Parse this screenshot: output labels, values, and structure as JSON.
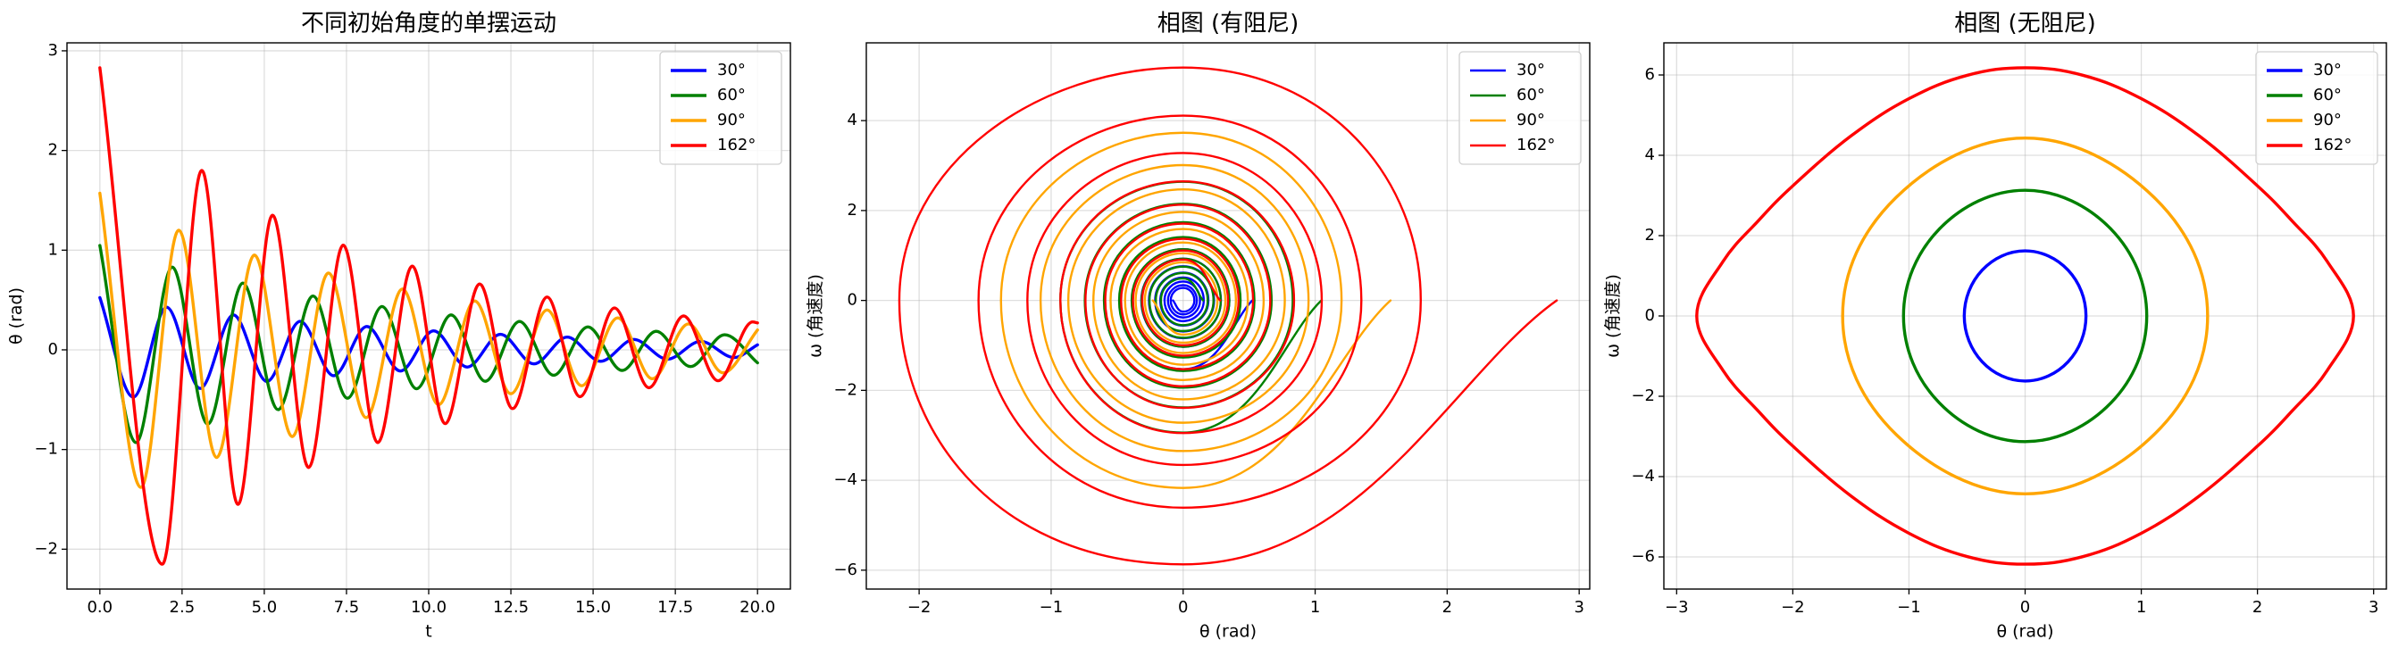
{
  "chart_data": [
    {
      "type": "line",
      "title": "不同初始角度的单摆运动",
      "xlabel": "t",
      "ylabel": "θ (rad)",
      "xlim": [
        -1,
        21
      ],
      "ylim": [
        -2.4,
        3.08
      ],
      "xticks": [
        {
          "value": 0,
          "label": "0.0"
        },
        2.5,
        {
          "value": 5,
          "label": "5.0"
        },
        7.5,
        {
          "value": 10,
          "label": "10.0"
        },
        12.5,
        {
          "value": 15,
          "label": "15.0"
        },
        17.5,
        {
          "value": 20,
          "label": "20.0"
        }
      ],
      "yticks": [
        {
          "value": -2,
          "label": "−2"
        },
        {
          "value": -1,
          "label": "−1"
        },
        0,
        1,
        2,
        3
      ],
      "grid": true,
      "legend": "upper right",
      "series": [
        {
          "name": "30°",
          "color": "#0000ff",
          "x": [
            0,
            1.02,
            2.03,
            3.05,
            4.06,
            5.08,
            6.09,
            7.11,
            8.12,
            9.14,
            10.15,
            11.17,
            12.18,
            13.2,
            14.21,
            15.23,
            16.24,
            17.26,
            18.27,
            19.29,
            20
          ],
          "values": [
            0.524,
            -0.474,
            0.428,
            -0.387,
            0.35,
            -0.317,
            0.286,
            -0.259,
            0.234,
            -0.212,
            0.191,
            -0.173,
            0.156,
            -0.141,
            0.128,
            -0.115,
            0.104,
            -0.094,
            0.085,
            -0.077,
            0.05
          ]
        },
        {
          "name": "60°",
          "color": "#008000",
          "x": [
            0,
            1.1,
            2.2,
            3.28,
            4.35,
            5.42,
            6.48,
            7.53,
            8.58,
            9.63,
            10.68,
            11.72,
            12.76,
            13.8,
            14.84,
            15.88,
            16.92,
            17.96,
            19.0,
            20
          ],
          "values": [
            1.047,
            -0.93,
            0.83,
            -0.745,
            0.67,
            -0.6,
            0.54,
            -0.485,
            0.435,
            -0.39,
            0.35,
            -0.315,
            0.285,
            -0.255,
            0.23,
            -0.207,
            0.186,
            -0.168,
            0.151,
            -0.13
          ]
        },
        {
          "name": "90°",
          "color": "#ffa500",
          "x": [
            0,
            1.25,
            2.4,
            3.55,
            4.7,
            5.85,
            6.95,
            8.1,
            9.2,
            10.3,
            11.4,
            12.5,
            13.6,
            14.65,
            15.75,
            16.8,
            17.9,
            18.95,
            20
          ],
          "values": [
            1.571,
            -1.38,
            1.2,
            -1.08,
            0.95,
            -0.87,
            0.77,
            -0.68,
            0.61,
            -0.55,
            0.49,
            -0.44,
            0.4,
            -0.36,
            0.32,
            -0.29,
            0.26,
            -0.23,
            0.2
          ]
        },
        {
          "name": "162°",
          "color": "#ff0000",
          "x": [
            0,
            1.9,
            3.1,
            4.2,
            5.25,
            6.35,
            7.4,
            8.45,
            9.5,
            10.5,
            11.55,
            12.55,
            13.6,
            14.6,
            15.65,
            16.7,
            17.75,
            18.8,
            19.85,
            20
          ],
          "values": [
            2.83,
            -2.15,
            1.8,
            -1.55,
            1.35,
            -1.18,
            1.05,
            -0.93,
            0.84,
            -0.74,
            0.66,
            -0.59,
            0.53,
            -0.47,
            0.42,
            -0.38,
            0.34,
            -0.31,
            0.28,
            0.27
          ]
        }
      ]
    },
    {
      "type": "line",
      "title": "相图 (有阻尼)",
      "xlabel": "θ (rad)",
      "ylabel": "ω (角速度)",
      "xlim": [
        -2.4,
        3.08
      ],
      "ylim": [
        -6.42,
        5.73
      ],
      "xticks": [
        {
          "value": -2,
          "label": "−2"
        },
        {
          "value": -1,
          "label": "−1"
        },
        0,
        1,
        2,
        3
      ],
      "yticks": [
        {
          "value": -6,
          "label": "−6"
        },
        {
          "value": -4,
          "label": "−4"
        },
        {
          "value": -2,
          "label": "−2"
        },
        0,
        2,
        4
      ],
      "grid": true,
      "legend": "upper right",
      "series": [
        {
          "name": "30°",
          "color": "#0000ff",
          "x": [
            0.524,
            0,
            -0.474,
            0,
            0.428,
            0,
            -0.387,
            0,
            0.35,
            0,
            -0.317,
            0,
            0.286,
            0,
            -0.259,
            0,
            0.234,
            0,
            -0.212,
            0,
            0.191,
            0,
            -0.173,
            0,
            0.156,
            0,
            -0.141,
            0,
            0.128,
            0,
            -0.115,
            0,
            0.104,
            0,
            -0.094,
            0,
            0.085,
            0,
            -0.077
          ],
          "values": [
            0,
            -1.53,
            0,
            1.39,
            0,
            -1.25,
            0,
            1.14,
            0,
            -1.03,
            0,
            0.93,
            0,
            -0.84,
            0,
            0.76,
            0,
            -0.69,
            0,
            0.62,
            0,
            -0.56,
            0,
            0.51,
            0,
            -0.46,
            0,
            0.42,
            0,
            -0.38,
            0,
            0.34,
            0,
            -0.31,
            0,
            0.28,
            0,
            -0.25,
            0
          ]
        },
        {
          "name": "60°",
          "color": "#008000",
          "x": [
            1.047,
            0,
            -0.93,
            0,
            0.83,
            0,
            -0.745,
            0,
            0.67,
            0,
            -0.6,
            0,
            0.54,
            0,
            -0.485,
            0,
            0.435,
            0,
            -0.39,
            0,
            0.35,
            0,
            -0.315,
            0,
            0.285,
            0,
            -0.255,
            0,
            0.23,
            0,
            -0.207,
            0,
            0.186,
            0,
            -0.168,
            0,
            0.151
          ],
          "values": [
            0,
            -2.94,
            0,
            2.64,
            0,
            -2.38,
            0,
            2.15,
            0,
            -1.94,
            0,
            1.74,
            0,
            -1.57,
            0,
            1.41,
            0,
            -1.27,
            0,
            1.14,
            0,
            -1.03,
            0,
            0.93,
            0,
            -0.83,
            0,
            0.75,
            0,
            -0.68,
            0,
            0.61,
            0,
            -0.55,
            0,
            0.49,
            0
          ]
        },
        {
          "name": "90°",
          "color": "#ffa500",
          "x": [
            1.571,
            0,
            -1.38,
            0,
            1.2,
            0,
            -1.08,
            0,
            0.95,
            0,
            -0.87,
            0,
            0.77,
            0,
            -0.68,
            0,
            0.61,
            0,
            -0.55,
            0,
            0.49,
            0,
            -0.44,
            0,
            0.4,
            0,
            -0.36,
            0,
            0.32,
            0,
            -0.29,
            0,
            0.26,
            0,
            -0.23
          ],
          "values": [
            0,
            -4.17,
            0,
            3.73,
            0,
            -3.35,
            0,
            3.01,
            0,
            -2.72,
            0,
            2.47,
            0,
            -2.2,
            0,
            1.97,
            0,
            -1.77,
            0,
            1.59,
            0,
            -1.43,
            0,
            1.29,
            0,
            -1.17,
            0,
            1.05,
            0,
            -0.94,
            0,
            0.85,
            0,
            -0.76,
            0
          ]
        },
        {
          "name": "162°",
          "color": "#ff0000",
          "x": [
            2.83,
            0,
            -2.15,
            0,
            1.8,
            0,
            -1.55,
            0,
            1.35,
            0,
            -1.18,
            0,
            1.05,
            0,
            -0.93,
            0,
            0.84,
            0,
            -0.74,
            0,
            0.66,
            0,
            -0.59,
            0,
            0.53,
            0,
            -0.47,
            0,
            0.42,
            0,
            -0.38,
            0,
            0.34,
            0,
            -0.31,
            0,
            0.28
          ],
          "values": [
            0,
            -5.87,
            0,
            5.18,
            0,
            -4.61,
            0,
            4.11,
            0,
            -3.66,
            0,
            3.28,
            0,
            -2.95,
            0,
            2.65,
            0,
            -2.39,
            0,
            2.13,
            0,
            -1.91,
            0,
            1.71,
            0,
            -1.53,
            0,
            1.37,
            0,
            -1.23,
            0,
            1.11,
            0,
            -1.0,
            0,
            0.91,
            0
          ]
        }
      ]
    },
    {
      "type": "line",
      "title": "相图 (无阻尼)",
      "xlabel": "θ (rad)",
      "ylabel": "ω (角速度)",
      "xlim": [
        -3.11,
        3.11
      ],
      "ylim": [
        -6.8,
        6.8
      ],
      "xticks": [
        {
          "value": -3,
          "label": "−3"
        },
        {
          "value": -2,
          "label": "−2"
        },
        {
          "value": -1,
          "label": "−1"
        },
        0,
        1,
        2,
        3
      ],
      "yticks": [
        {
          "value": -6,
          "label": "−6"
        },
        {
          "value": -4,
          "label": "−4"
        },
        {
          "value": -2,
          "label": "−2"
        },
        0,
        2,
        4,
        6
      ],
      "grid": true,
      "legend": "upper right",
      "series": [
        {
          "name": "30°",
          "color": "#0000ff",
          "x": [
            0.524,
            0.37,
            0,
            -0.37,
            -0.524,
            -0.37,
            0,
            0.37,
            0.524
          ],
          "values": [
            0,
            -1.14,
            -1.62,
            -1.14,
            0,
            1.14,
            1.62,
            1.14,
            0
          ]
        },
        {
          "name": "60°",
          "color": "#008000",
          "x": [
            1.047,
            0.74,
            0,
            -0.74,
            -1.047,
            -0.74,
            0,
            0.74,
            1.047
          ],
          "values": [
            0,
            -2.16,
            -3.13,
            -2.16,
            0,
            2.16,
            3.13,
            2.16,
            0
          ]
        },
        {
          "name": "90°",
          "color": "#ffa500",
          "x": [
            1.571,
            1.111,
            0,
            -1.111,
            -1.571,
            -1.111,
            0,
            1.111,
            1.571
          ],
          "values": [
            0,
            -2.95,
            -4.43,
            -2.95,
            0,
            2.95,
            4.43,
            2.95,
            0
          ]
        },
        {
          "name": "162°",
          "color": "#ff0000",
          "x": [
            2.827,
            2.6,
            2.3,
            2.0,
            1.5,
            1.0,
            0.5,
            0,
            -0.5,
            -1.0,
            -1.5,
            -2.0,
            -2.3,
            -2.6,
            -2.827,
            -2.6,
            -2.3,
            -2.0,
            -1.5,
            -1.0,
            -0.5,
            0,
            0.5,
            1.0,
            1.5,
            2.0,
            2.3,
            2.6,
            2.827
          ],
          "values": [
            0,
            -1.36,
            -2.36,
            -3.24,
            -4.48,
            -5.41,
            -5.99,
            -6.18,
            -5.99,
            -5.41,
            -4.48,
            -3.24,
            -2.36,
            -1.36,
            0,
            1.36,
            2.36,
            3.24,
            4.48,
            5.41,
            5.99,
            6.18,
            5.99,
            5.41,
            4.48,
            3.24,
            2.36,
            1.36,
            0
          ]
        }
      ]
    }
  ]
}
